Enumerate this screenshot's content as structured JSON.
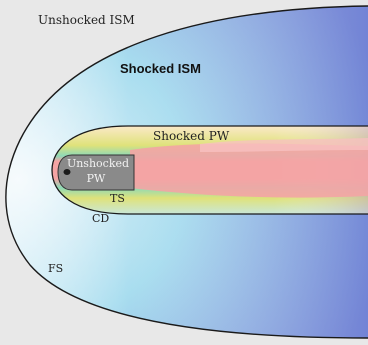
{
  "labels": {
    "unshocked_ism": "Unshocked ISM",
    "shocked_ism": "Shocked ISM",
    "shocked_pw": "Shocked  PW",
    "unshocked_pw_line1": "Unshocked",
    "unshocked_pw_line2": "PW",
    "ts": "TS",
    "cd": "CD",
    "fs": "FS"
  },
  "colors": {
    "background": "#e8e8e8",
    "ism_edge": "#eef7fb",
    "ism_mid": "#a8ddef",
    "ism_far": "#7f8fd8",
    "pw_core": "#f4a4a4",
    "pw_yellow": "#dfe27a",
    "pw_green": "#8ed9b7",
    "unshocked_pw_fill": "#8a8a8a",
    "boundary": "#1a1a1a"
  }
}
